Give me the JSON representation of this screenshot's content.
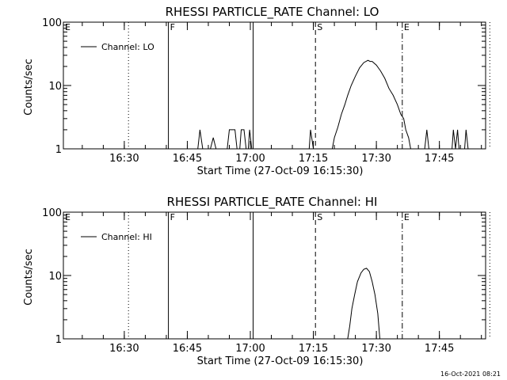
{
  "stamp": "16-Oct-2021 08:21",
  "chart_data": [
    {
      "type": "line",
      "title": "RHESSI PARTICLE_RATE Channel: LO",
      "xlabel": "Start Time (27-Oct-09 16:15:30)",
      "ylabel": "Counts/sec",
      "yscale": "log",
      "ylim": [
        1,
        100
      ],
      "yticks": [
        {
          "value": 1,
          "label": "1"
        },
        {
          "value": 10,
          "label": "10"
        },
        {
          "value": 100,
          "label": "100"
        }
      ],
      "xlim": [
        "16:15:30",
        "17:56:00"
      ],
      "xticks": [
        "16:30",
        "16:45",
        "17:00",
        "17:15",
        "17:30",
        "17:45"
      ],
      "legend": {
        "label": "Channel: LO",
        "placement": "top-left"
      },
      "vlines": [
        {
          "time": "16:31:00",
          "style": "dotted",
          "label": ""
        },
        {
          "time": "16:40:30",
          "style": "solid",
          "label": "F"
        },
        {
          "time": "17:00:40",
          "style": "solid",
          "label": ""
        },
        {
          "time": "17:15:30",
          "style": "dashed",
          "label": "S"
        },
        {
          "time": "17:36:10",
          "style": "dashdot",
          "label": "E"
        },
        {
          "time": "17:57:00",
          "style": "dotted",
          "label": ""
        }
      ],
      "corner_labels": {
        "left": "E"
      },
      "series": [
        {
          "name": "Channel: LO",
          "points": [
            [
              "16:15:30",
              1
            ],
            [
              "16:47:30",
              1
            ],
            [
              "16:48:00",
              2
            ],
            [
              "16:48:40",
              1
            ],
            [
              "16:50:30",
              1
            ],
            [
              "16:51:10",
              1.5
            ],
            [
              "16:51:50",
              1
            ],
            [
              "16:54:30",
              1
            ],
            [
              "16:55:00",
              2
            ],
            [
              "16:56:20",
              2
            ],
            [
              "16:56:50",
              1
            ],
            [
              "16:57:30",
              1
            ],
            [
              "16:57:50",
              2
            ],
            [
              "16:58:30",
              2
            ],
            [
              "16:59:00",
              1
            ],
            [
              "16:59:30",
              1
            ],
            [
              "16:59:50",
              2
            ],
            [
              "17:00:20",
              1
            ],
            [
              "17:14:00",
              1
            ],
            [
              "17:14:20",
              2
            ],
            [
              "17:15:00",
              1
            ],
            [
              "17:19:30",
              1
            ],
            [
              "17:20:00",
              1.5
            ],
            [
              "17:20:50",
              2.2
            ],
            [
              "17:21:40",
              3.5
            ],
            [
              "17:22:30",
              5
            ],
            [
              "17:23:10",
              7
            ],
            [
              "17:24:00",
              10
            ],
            [
              "17:25:00",
              14
            ],
            [
              "17:26:00",
              19
            ],
            [
              "17:27:00",
              23
            ],
            [
              "17:28:00",
              25
            ],
            [
              "17:28:30",
              24
            ],
            [
              "17:29:00",
              24
            ],
            [
              "17:30:00",
              21
            ],
            [
              "17:31:00",
              17
            ],
            [
              "17:32:00",
              13
            ],
            [
              "17:33:00",
              9
            ],
            [
              "17:34:00",
              7
            ],
            [
              "17:35:00",
              5
            ],
            [
              "17:35:50",
              3.5
            ],
            [
              "17:36:30",
              3
            ],
            [
              "17:37:00",
              2
            ],
            [
              "17:37:40",
              1.5
            ],
            [
              "17:38:10",
              1
            ],
            [
              "17:41:30",
              1
            ],
            [
              "17:42:00",
              2
            ],
            [
              "17:42:30",
              1
            ],
            [
              "17:48:00",
              1
            ],
            [
              "17:48:20",
              2
            ],
            [
              "17:48:50",
              1
            ],
            [
              "17:49:20",
              2
            ],
            [
              "17:49:40",
              1
            ],
            [
              "17:51:00",
              1
            ],
            [
              "17:51:20",
              2
            ],
            [
              "17:51:50",
              1
            ],
            [
              "17:56:00",
              1
            ]
          ]
        }
      ]
    },
    {
      "type": "line",
      "title": "RHESSI PARTICLE_RATE Channel: HI",
      "xlabel": "Start Time (27-Oct-09 16:15:30)",
      "ylabel": "Counts/sec",
      "yscale": "log",
      "ylim": [
        1,
        100
      ],
      "yticks": [
        {
          "value": 1,
          "label": "1"
        },
        {
          "value": 10,
          "label": "10"
        },
        {
          "value": 100,
          "label": "100"
        }
      ],
      "xlim": [
        "16:15:30",
        "17:56:00"
      ],
      "xticks": [
        "16:30",
        "16:45",
        "17:00",
        "17:15",
        "17:30",
        "17:45"
      ],
      "legend": {
        "label": "Channel: HI",
        "placement": "top-left"
      },
      "vlines": [
        {
          "time": "16:31:00",
          "style": "dotted",
          "label": ""
        },
        {
          "time": "16:40:30",
          "style": "solid",
          "label": "F"
        },
        {
          "time": "17:00:40",
          "style": "solid",
          "label": ""
        },
        {
          "time": "17:15:30",
          "style": "dashed",
          "label": "S"
        },
        {
          "time": "17:36:10",
          "style": "dashdot",
          "label": "E"
        },
        {
          "time": "17:57:00",
          "style": "dotted",
          "label": ""
        }
      ],
      "corner_labels": {
        "left": "E"
      },
      "series": [
        {
          "name": "Channel: HI",
          "points": [
            [
              "17:23:10",
              1
            ],
            [
              "17:23:40",
              1.6
            ],
            [
              "17:24:10",
              3
            ],
            [
              "17:24:50",
              5
            ],
            [
              "17:25:30",
              8
            ],
            [
              "17:26:20",
              11
            ],
            [
              "17:27:00",
              12.5
            ],
            [
              "17:27:40",
              13
            ],
            [
              "17:28:20",
              11.5
            ],
            [
              "17:29:00",
              8
            ],
            [
              "17:29:40",
              5
            ],
            [
              "17:30:20",
              2.5
            ],
            [
              "17:30:50",
              1
            ]
          ]
        }
      ]
    }
  ]
}
